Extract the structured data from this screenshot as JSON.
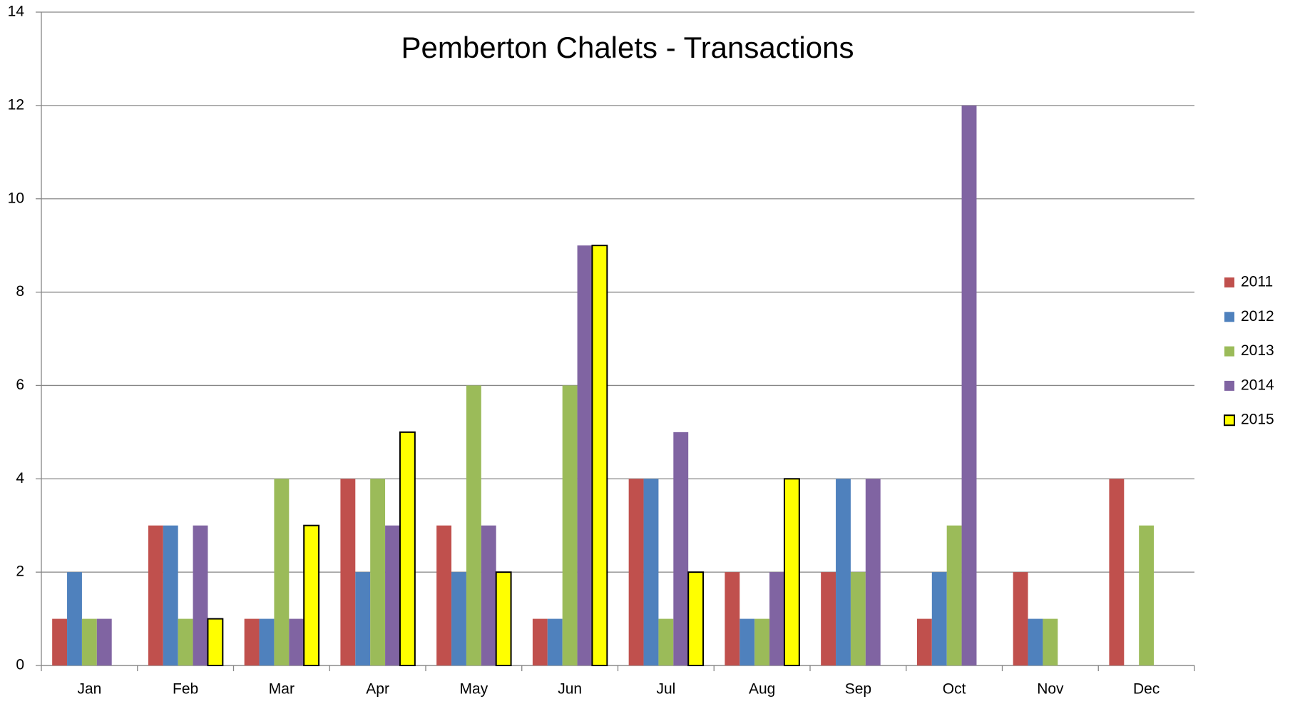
{
  "chart_data": {
    "type": "bar",
    "title": "Pemberton Chalets - Transactions",
    "categories": [
      "Jan",
      "Feb",
      "Mar",
      "Apr",
      "May",
      "Jun",
      "Jul",
      "Aug",
      "Sep",
      "Oct",
      "Nov",
      "Dec"
    ],
    "series": [
      {
        "name": "2011",
        "color": "#c0504d",
        "values": [
          1,
          3,
          1,
          4,
          3,
          1,
          4,
          2,
          2,
          1,
          2,
          4
        ]
      },
      {
        "name": "2012",
        "color": "#4f81bd",
        "values": [
          2,
          3,
          1,
          2,
          2,
          1,
          4,
          1,
          4,
          2,
          1,
          null
        ]
      },
      {
        "name": "2013",
        "color": "#9bbb59",
        "values": [
          1,
          1,
          4,
          4,
          6,
          6,
          1,
          1,
          2,
          3,
          1,
          3
        ]
      },
      {
        "name": "2014",
        "color": "#8064a2",
        "values": [
          1,
          3,
          1,
          3,
          3,
          9,
          5,
          2,
          4,
          12,
          null,
          null
        ]
      },
      {
        "name": "2015",
        "color": "#ffff00",
        "values": [
          null,
          1,
          3,
          5,
          2,
          9,
          2,
          4,
          null,
          null,
          null,
          null
        ]
      }
    ],
    "ylim": [
      0,
      14
    ],
    "yticks": [
      0,
      2,
      4,
      6,
      8,
      10,
      12,
      14
    ],
    "grid": true,
    "legend": "right"
  }
}
